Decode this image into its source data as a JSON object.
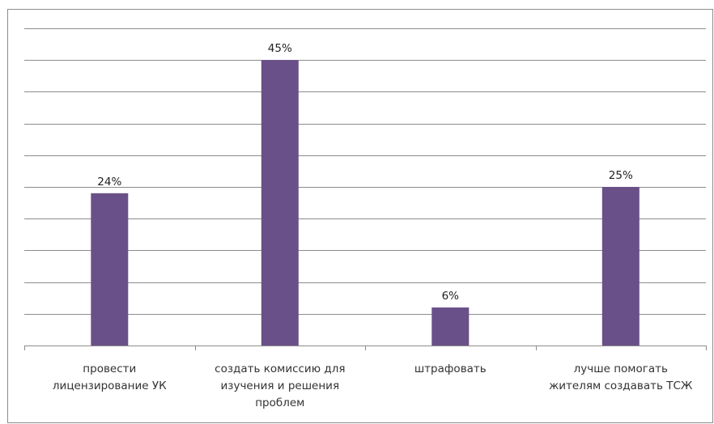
{
  "chart_data": {
    "type": "bar",
    "categories": [
      "провести лицензирование УК",
      "создать комиссию для изучения и решения проблем",
      "штрафовать",
      "лучше помогать жителям создавать ТСЖ"
    ],
    "category_display": [
      "провести\nлицензирование УК",
      "создать комиссию для\nизучения и решения\nпроблем",
      "штрафовать",
      "лучше помогать\nжителям создавать ТСЖ"
    ],
    "values": [
      24,
      45,
      6,
      25
    ],
    "data_labels": [
      "24%",
      "45%",
      "6%",
      "25%"
    ],
    "title": "",
    "xlabel": "",
    "ylabel": "",
    "ylim": [
      0,
      50
    ],
    "grid": true,
    "legend": "none",
    "bar_color": "#6a5088",
    "grid_color": "#8c8c8c"
  }
}
